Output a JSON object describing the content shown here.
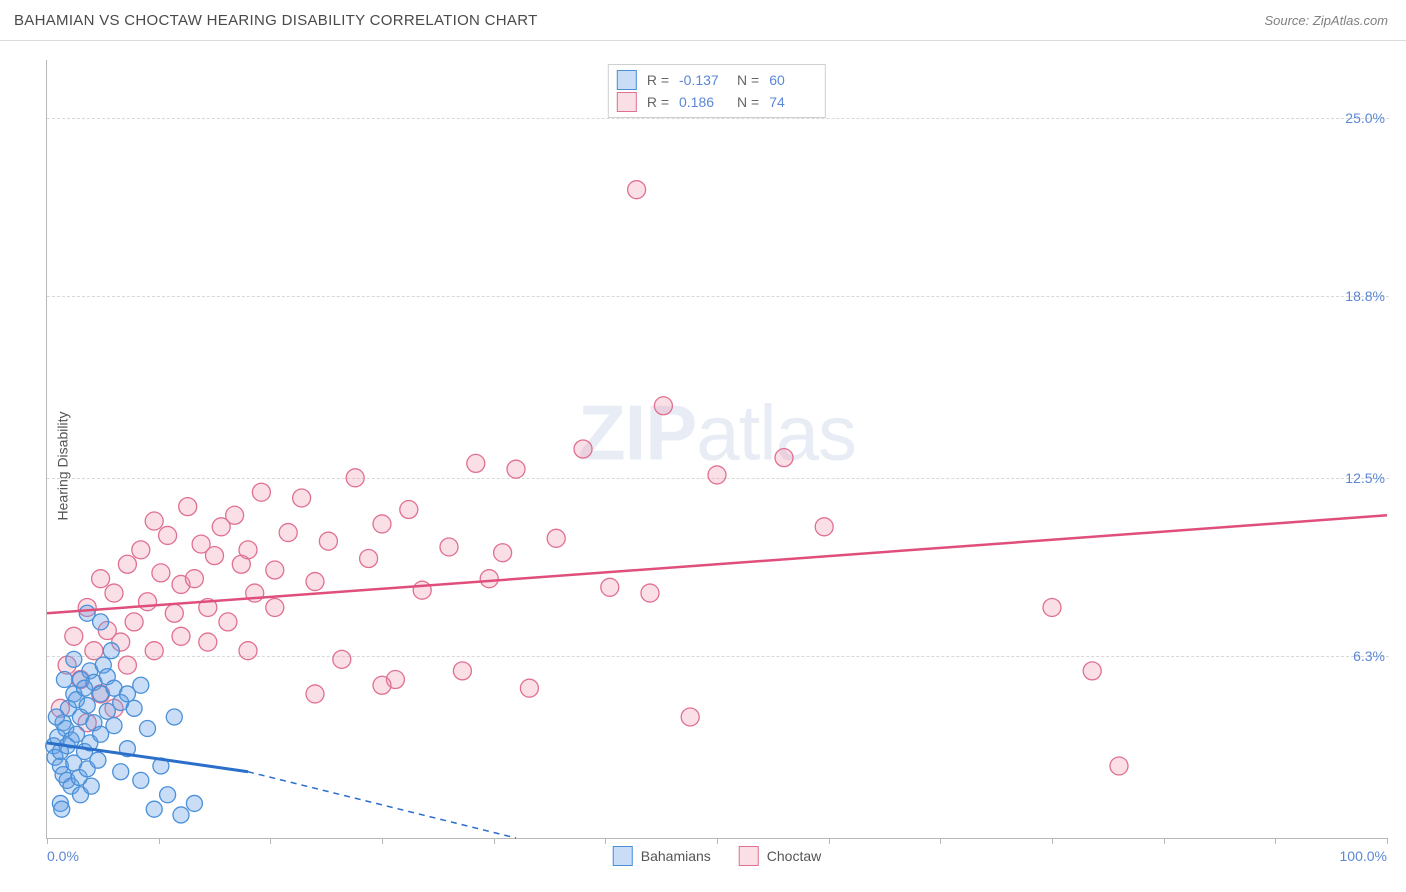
{
  "header": {
    "title": "BAHAMIAN VS CHOCTAW HEARING DISABILITY CORRELATION CHART",
    "source": "Source: ZipAtlas.com"
  },
  "chart": {
    "type": "scatter",
    "ylabel": "Hearing Disability",
    "background_color": "#ffffff",
    "grid_color": "#d8d8d8",
    "axis_color": "#b8b8b8",
    "tick_label_color": "#5b87d6",
    "tick_fontsize": 14,
    "label_fontsize": 14,
    "xlim": [
      0,
      100
    ],
    "ylim": [
      0,
      27
    ],
    "x_min_label": "0.0%",
    "x_max_label": "100.0%",
    "xtick_positions": [
      0,
      8.33,
      16.67,
      25,
      33.33,
      41.67,
      50,
      58.33,
      66.67,
      75,
      83.33,
      91.67,
      100
    ],
    "yticks": [
      {
        "v": 6.3,
        "label": "6.3%"
      },
      {
        "v": 12.5,
        "label": "12.5%"
      },
      {
        "v": 18.8,
        "label": "18.8%"
      },
      {
        "v": 25.0,
        "label": "25.0%"
      }
    ],
    "watermark": {
      "zip": "ZIP",
      "atlas": "atlas"
    },
    "series": {
      "bahamians": {
        "label": "Bahamians",
        "marker_color_fill": "rgba(100,160,230,0.35)",
        "marker_color_stroke": "#4a90d9",
        "marker_radius": 8,
        "trend_color": "#2a6fc9",
        "trend_width": 3,
        "trend_dash_color": "#2a6fc9",
        "trend_solid": {
          "x1": 0,
          "y1": 3.3,
          "x2": 15,
          "y2": 2.3
        },
        "trend_dashed": {
          "x1": 15,
          "y1": 2.3,
          "x2": 35,
          "y2": 0
        },
        "r": "-0.137",
        "n": "60",
        "points": [
          [
            0.5,
            3.2
          ],
          [
            0.6,
            2.8
          ],
          [
            0.8,
            3.5
          ],
          [
            1.0,
            2.5
          ],
          [
            1.0,
            3.0
          ],
          [
            1.2,
            2.2
          ],
          [
            1.2,
            4.0
          ],
          [
            1.4,
            3.8
          ],
          [
            1.5,
            2.0
          ],
          [
            1.5,
            3.2
          ],
          [
            1.6,
            4.5
          ],
          [
            1.8,
            1.8
          ],
          [
            1.8,
            3.4
          ],
          [
            2.0,
            5.0
          ],
          [
            2.0,
            2.6
          ],
          [
            2.2,
            3.6
          ],
          [
            2.2,
            4.8
          ],
          [
            2.4,
            2.1
          ],
          [
            2.5,
            4.2
          ],
          [
            2.5,
            5.5
          ],
          [
            2.8,
            3.0
          ],
          [
            2.8,
            5.2
          ],
          [
            3.0,
            2.4
          ],
          [
            3.0,
            4.6
          ],
          [
            3.2,
            5.8
          ],
          [
            3.2,
            3.3
          ],
          [
            3.5,
            4.0
          ],
          [
            3.5,
            5.4
          ],
          [
            3.8,
            2.7
          ],
          [
            4.0,
            5.0
          ],
          [
            4.0,
            3.6
          ],
          [
            4.2,
            6.0
          ],
          [
            4.5,
            4.4
          ],
          [
            4.5,
            5.6
          ],
          [
            5.0,
            3.9
          ],
          [
            5.0,
            5.2
          ],
          [
            5.5,
            2.3
          ],
          [
            5.5,
            4.7
          ],
          [
            6.0,
            5.0
          ],
          [
            6.0,
            3.1
          ],
          [
            6.5,
            4.5
          ],
          [
            7.0,
            5.3
          ],
          [
            7.0,
            2.0
          ],
          [
            7.5,
            3.8
          ],
          [
            8.0,
            1.0
          ],
          [
            8.5,
            2.5
          ],
          [
            9.0,
            1.5
          ],
          [
            9.5,
            4.2
          ],
          [
            10.0,
            0.8
          ],
          [
            11.0,
            1.2
          ],
          [
            4.0,
            7.5
          ],
          [
            3.0,
            7.8
          ],
          [
            2.5,
            1.5
          ],
          [
            1.0,
            1.2
          ],
          [
            1.3,
            5.5
          ],
          [
            2.0,
            6.2
          ],
          [
            4.8,
            6.5
          ],
          [
            3.3,
            1.8
          ],
          [
            0.7,
            4.2
          ],
          [
            1.1,
            1.0
          ]
        ]
      },
      "choctaw": {
        "label": "Choctaw",
        "marker_color_fill": "rgba(240,140,170,0.28)",
        "marker_color_stroke": "#e07090",
        "marker_radius": 9,
        "trend_color": "#e04f7c",
        "trend_width": 2.5,
        "trend_solid": {
          "x1": 0,
          "y1": 7.8,
          "x2": 100,
          "y2": 11.2
        },
        "r": "0.186",
        "n": "74",
        "points": [
          [
            1.5,
            6.0
          ],
          [
            2.0,
            7.0
          ],
          [
            2.5,
            5.5
          ],
          [
            3.0,
            8.0
          ],
          [
            3.5,
            6.5
          ],
          [
            4.0,
            9.0
          ],
          [
            4.5,
            7.2
          ],
          [
            5.0,
            8.5
          ],
          [
            5.5,
            6.8
          ],
          [
            6.0,
            9.5
          ],
          [
            6.5,
            7.5
          ],
          [
            7.0,
            10.0
          ],
          [
            7.5,
            8.2
          ],
          [
            8.0,
            11.0
          ],
          [
            8.5,
            9.2
          ],
          [
            9.0,
            10.5
          ],
          [
            9.5,
            7.8
          ],
          [
            10.0,
            8.8
          ],
          [
            10.5,
            11.5
          ],
          [
            11.0,
            9.0
          ],
          [
            11.5,
            10.2
          ],
          [
            12.0,
            8.0
          ],
          [
            12.5,
            9.8
          ],
          [
            13.0,
            10.8
          ],
          [
            13.5,
            7.5
          ],
          [
            14.0,
            11.2
          ],
          [
            14.5,
            9.5
          ],
          [
            15.0,
            10.0
          ],
          [
            15.5,
            8.5
          ],
          [
            16.0,
            12.0
          ],
          [
            17.0,
            9.3
          ],
          [
            18.0,
            10.6
          ],
          [
            19.0,
            11.8
          ],
          [
            20.0,
            8.9
          ],
          [
            21.0,
            10.3
          ],
          [
            22.0,
            6.2
          ],
          [
            23.0,
            12.5
          ],
          [
            24.0,
            9.7
          ],
          [
            25.0,
            10.9
          ],
          [
            26.0,
            5.5
          ],
          [
            27.0,
            11.4
          ],
          [
            28.0,
            8.6
          ],
          [
            30.0,
            10.1
          ],
          [
            32.0,
            13.0
          ],
          [
            34.0,
            9.9
          ],
          [
            35.0,
            12.8
          ],
          [
            36.0,
            5.2
          ],
          [
            38.0,
            10.4
          ],
          [
            40.0,
            13.5
          ],
          [
            42.0,
            8.7
          ],
          [
            44.0,
            22.5
          ],
          [
            46.0,
            15.0
          ],
          [
            48.0,
            4.2
          ],
          [
            50.0,
            12.6
          ],
          [
            55.0,
            13.2
          ],
          [
            58.0,
            10.8
          ],
          [
            75.0,
            8.0
          ],
          [
            78.0,
            5.8
          ],
          [
            80.0,
            2.5
          ],
          [
            3.0,
            4.0
          ],
          [
            4.0,
            5.0
          ],
          [
            5.0,
            4.5
          ],
          [
            20.0,
            5.0
          ],
          [
            25.0,
            5.3
          ],
          [
            6.0,
            6.0
          ],
          [
            8.0,
            6.5
          ],
          [
            10.0,
            7.0
          ],
          [
            12.0,
            6.8
          ],
          [
            31.0,
            5.8
          ],
          [
            33.0,
            9.0
          ],
          [
            15.0,
            6.5
          ],
          [
            17.0,
            8.0
          ],
          [
            45.0,
            8.5
          ],
          [
            1.0,
            4.5
          ]
        ]
      }
    },
    "legend_top": {
      "r_label": "R =",
      "n_label": "N ="
    }
  }
}
